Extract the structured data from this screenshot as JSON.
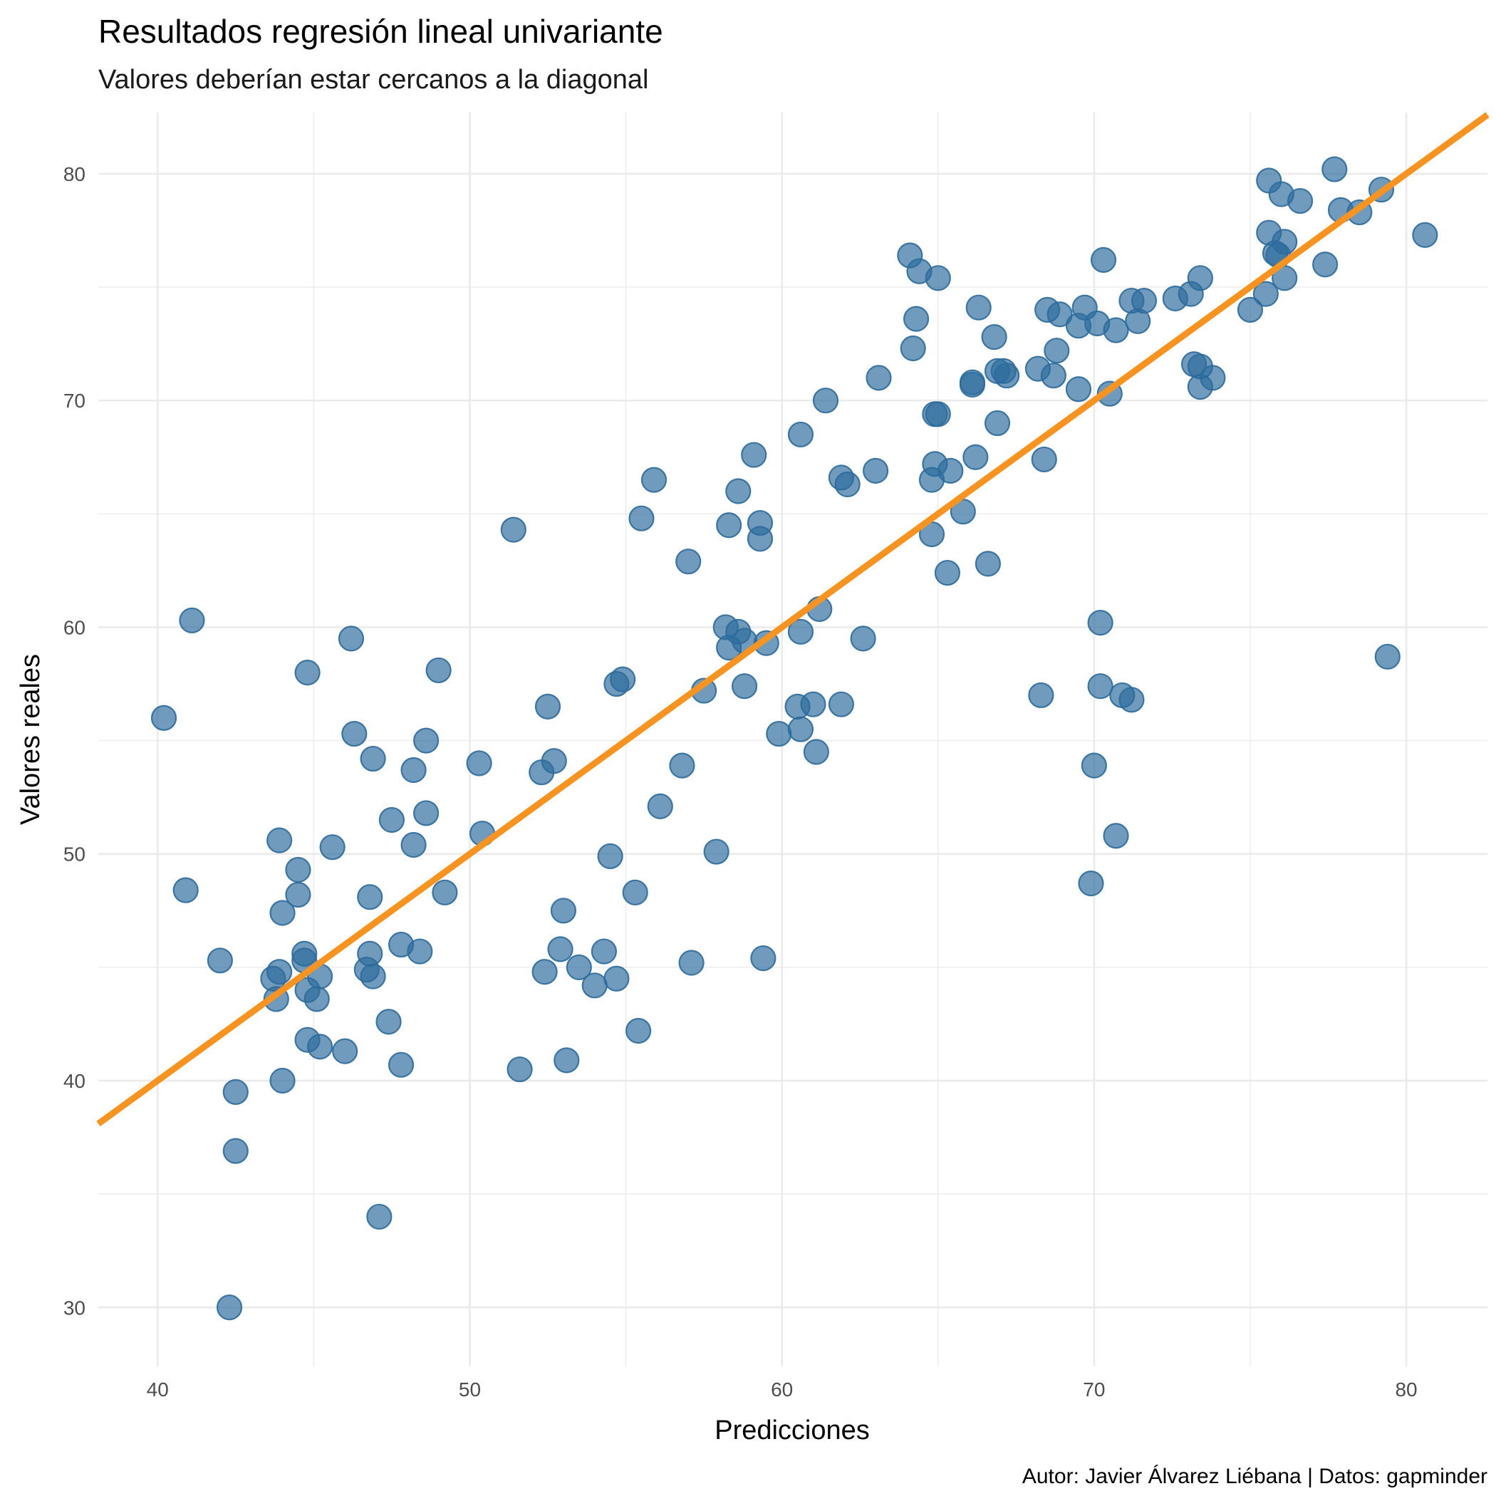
{
  "chart_data": {
    "type": "scatter",
    "title": "Resultados regresión lineal univariante",
    "subtitle": "Valores deberían estar cercanos a la diagonal",
    "xlabel": "Predicciones",
    "ylabel": "Valores reales",
    "caption": "Autor: Javier Álvarez Liébana | Datos: gapminder",
    "xlim": [
      38.1,
      82.6
    ],
    "ylim": [
      27.4,
      82.7
    ],
    "x_ticks": [
      40,
      50,
      60,
      70,
      80
    ],
    "y_ticks": [
      30,
      40,
      50,
      60,
      70,
      80
    ],
    "grid": true,
    "point_color": "#2c6b9c",
    "line_color": "#f7931e",
    "reference_line": {
      "slope": 1,
      "intercept": 0
    },
    "points": [
      [
        40.2,
        56.0
      ],
      [
        41.1,
        60.3
      ],
      [
        40.9,
        48.4
      ],
      [
        42.0,
        45.3
      ],
      [
        42.5,
        39.5
      ],
      [
        42.5,
        36.9
      ],
      [
        42.3,
        30.0
      ],
      [
        43.7,
        44.5
      ],
      [
        43.8,
        43.6
      ],
      [
        43.9,
        44.8
      ],
      [
        43.9,
        50.6
      ],
      [
        44.0,
        47.4
      ],
      [
        44.0,
        40.0
      ],
      [
        44.5,
        49.3
      ],
      [
        44.5,
        48.2
      ],
      [
        44.7,
        45.6
      ],
      [
        44.7,
        45.3
      ],
      [
        44.8,
        44.0
      ],
      [
        44.8,
        41.8
      ],
      [
        44.8,
        58.0
      ],
      [
        45.1,
        43.6
      ],
      [
        45.2,
        44.6
      ],
      [
        45.2,
        41.5
      ],
      [
        45.6,
        50.3
      ],
      [
        46.0,
        41.3
      ],
      [
        46.2,
        59.5
      ],
      [
        46.3,
        55.3
      ],
      [
        46.7,
        44.9
      ],
      [
        46.8,
        45.6
      ],
      [
        46.8,
        48.1
      ],
      [
        46.9,
        44.6
      ],
      [
        46.9,
        54.2
      ],
      [
        47.1,
        34.0
      ],
      [
        47.4,
        42.6
      ],
      [
        47.5,
        51.5
      ],
      [
        47.8,
        46.0
      ],
      [
        47.8,
        40.7
      ],
      [
        48.2,
        53.7
      ],
      [
        48.2,
        50.4
      ],
      [
        48.4,
        45.7
      ],
      [
        48.6,
        55.0
      ],
      [
        48.6,
        51.8
      ],
      [
        49.0,
        58.1
      ],
      [
        49.2,
        48.3
      ],
      [
        50.3,
        54.0
      ],
      [
        50.4,
        50.9
      ],
      [
        51.4,
        64.3
      ],
      [
        51.6,
        40.5
      ],
      [
        52.3,
        53.6
      ],
      [
        52.4,
        44.8
      ],
      [
        52.5,
        56.5
      ],
      [
        52.7,
        54.1
      ],
      [
        52.9,
        45.8
      ],
      [
        53.0,
        47.5
      ],
      [
        53.1,
        40.9
      ],
      [
        53.5,
        45.0
      ],
      [
        54.0,
        44.2
      ],
      [
        54.3,
        45.7
      ],
      [
        54.5,
        49.9
      ],
      [
        54.7,
        44.5
      ],
      [
        54.7,
        57.5
      ],
      [
        54.9,
        57.7
      ],
      [
        55.3,
        48.3
      ],
      [
        55.4,
        42.2
      ],
      [
        55.5,
        64.8
      ],
      [
        55.9,
        66.5
      ],
      [
        56.1,
        52.1
      ],
      [
        56.8,
        53.9
      ],
      [
        57.0,
        62.9
      ],
      [
        57.1,
        45.2
      ],
      [
        57.5,
        57.2
      ],
      [
        57.9,
        50.1
      ],
      [
        58.2,
        60.0
      ],
      [
        58.3,
        64.5
      ],
      [
        58.3,
        59.1
      ],
      [
        58.6,
        66.0
      ],
      [
        58.6,
        59.8
      ],
      [
        58.8,
        57.4
      ],
      [
        58.8,
        59.4
      ],
      [
        59.1,
        67.6
      ],
      [
        59.3,
        64.6
      ],
      [
        59.3,
        63.9
      ],
      [
        59.4,
        45.4
      ],
      [
        59.5,
        59.3
      ],
      [
        59.9,
        55.3
      ],
      [
        60.5,
        56.5
      ],
      [
        60.6,
        55.5
      ],
      [
        60.6,
        59.8
      ],
      [
        60.6,
        68.5
      ],
      [
        61.0,
        56.6
      ],
      [
        61.1,
        54.5
      ],
      [
        61.2,
        60.8
      ],
      [
        61.4,
        70.0
      ],
      [
        61.9,
        66.6
      ],
      [
        61.9,
        56.6
      ],
      [
        62.1,
        66.3
      ],
      [
        62.6,
        59.5
      ],
      [
        63.0,
        66.9
      ],
      [
        63.1,
        71.0
      ],
      [
        64.1,
        76.4
      ],
      [
        64.2,
        72.3
      ],
      [
        64.3,
        73.6
      ],
      [
        64.4,
        75.7
      ],
      [
        64.8,
        64.1
      ],
      [
        64.8,
        66.5
      ],
      [
        64.9,
        69.4
      ],
      [
        64.9,
        67.2
      ],
      [
        65.0,
        75.4
      ],
      [
        65.0,
        69.4
      ],
      [
        65.3,
        62.4
      ],
      [
        65.4,
        66.9
      ],
      [
        65.8,
        65.1
      ],
      [
        66.1,
        70.7
      ],
      [
        66.1,
        70.8
      ],
      [
        66.2,
        67.5
      ],
      [
        66.3,
        74.1
      ],
      [
        66.6,
        62.8
      ],
      [
        66.8,
        72.8
      ],
      [
        66.9,
        71.3
      ],
      [
        66.9,
        69.0
      ],
      [
        67.1,
        71.3
      ],
      [
        67.2,
        71.1
      ],
      [
        68.2,
        71.4
      ],
      [
        68.3,
        57.0
      ],
      [
        68.4,
        67.4
      ],
      [
        68.5,
        74.0
      ],
      [
        68.7,
        71.1
      ],
      [
        68.8,
        72.2
      ],
      [
        68.9,
        73.8
      ],
      [
        69.5,
        70.5
      ],
      [
        69.5,
        73.3
      ],
      [
        69.7,
        74.1
      ],
      [
        69.9,
        48.7
      ],
      [
        70.0,
        53.9
      ],
      [
        70.1,
        73.4
      ],
      [
        70.2,
        57.4
      ],
      [
        70.2,
        60.2
      ],
      [
        70.3,
        76.2
      ],
      [
        70.5,
        70.3
      ],
      [
        70.7,
        73.1
      ],
      [
        70.7,
        50.8
      ],
      [
        70.9,
        57.0
      ],
      [
        71.2,
        56.8
      ],
      [
        71.2,
        74.4
      ],
      [
        71.4,
        73.5
      ],
      [
        71.6,
        74.4
      ],
      [
        72.6,
        74.5
      ],
      [
        73.1,
        74.7
      ],
      [
        73.2,
        71.6
      ],
      [
        73.4,
        71.5
      ],
      [
        73.4,
        70.6
      ],
      [
        73.4,
        75.4
      ],
      [
        73.8,
        71.0
      ],
      [
        75.0,
        74.0
      ],
      [
        75.5,
        74.7
      ],
      [
        75.6,
        77.4
      ],
      [
        75.6,
        79.7
      ],
      [
        75.8,
        76.5
      ],
      [
        75.9,
        76.4
      ],
      [
        76.0,
        79.1
      ],
      [
        76.1,
        77.0
      ],
      [
        76.1,
        75.4
      ],
      [
        76.6,
        78.8
      ],
      [
        77.4,
        76.0
      ],
      [
        77.7,
        80.2
      ],
      [
        77.9,
        78.4
      ],
      [
        78.5,
        78.3
      ],
      [
        79.2,
        79.3
      ],
      [
        79.4,
        58.7
      ],
      [
        80.6,
        77.3
      ]
    ]
  }
}
